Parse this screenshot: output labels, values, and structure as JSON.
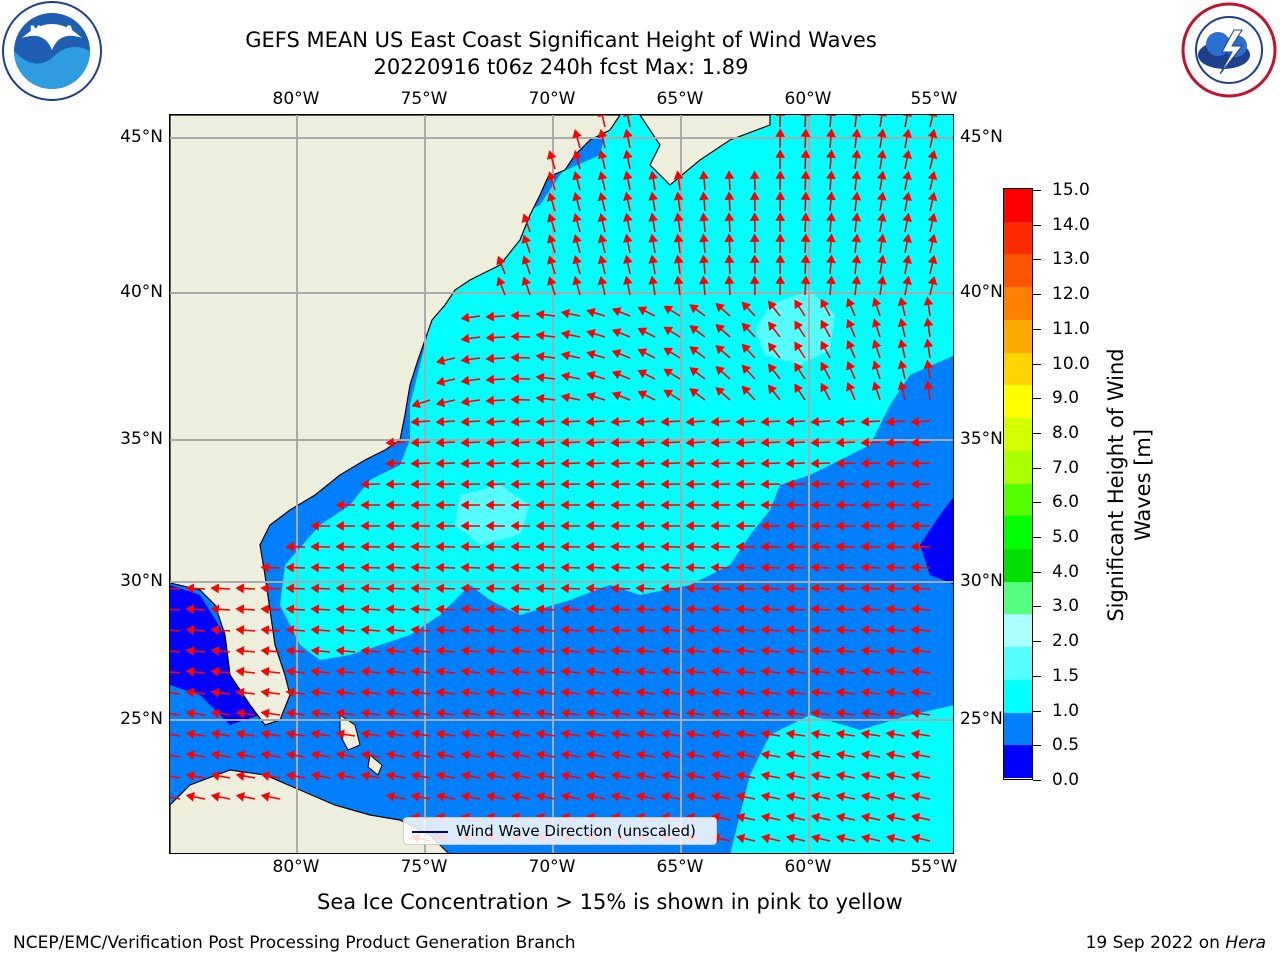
{
  "title": {
    "line1": "GEFS MEAN US East Coast Significant Height of Wind Waves",
    "line2": "20220916 t06z 240h fcst   Max: 1.89"
  },
  "map": {
    "lon_ticks": [
      "80°W",
      "75°W",
      "70°W",
      "65°W",
      "60°W",
      "55°W"
    ],
    "lat_ticks": [
      "45°N",
      "40°N",
      "35°N",
      "30°N",
      "25°N"
    ],
    "legend": "Wind Wave Direction (unscaled)"
  },
  "colorbar": {
    "label_line1": "Significant Height of Wind",
    "label_line2": "Waves [m]",
    "ticks": [
      "15.0",
      "14.0",
      "13.0",
      "12.0",
      "11.0",
      "10.0",
      "9.0",
      "8.0",
      "7.0",
      "6.0",
      "5.0",
      "4.0",
      "3.0",
      "2.0",
      "1.5",
      "1.0",
      "0.5",
      "0.0"
    ],
    "colors": [
      "#ff0000",
      "#ff2a00",
      "#ff5500",
      "#ff8000",
      "#ffaa00",
      "#ffd400",
      "#ffff00",
      "#d4ff00",
      "#aaff00",
      "#55ff00",
      "#00ff00",
      "#00e000",
      "#55ff80",
      "#aaffff",
      "#55ffff",
      "#00ffff",
      "#0080ff",
      "#0000ff"
    ]
  },
  "logos": {
    "noaa": "NOAA",
    "nws": "NATIONAL WEATHER SERVICE"
  },
  "note": "Sea Ice Concentration > 15% is shown in pink to yellow",
  "footer": {
    "left": "NCEP/EMC/Verification Post Processing Product Generation Branch",
    "right_date": "19 Sep 2022 on ",
    "right_machine": "Hera"
  }
}
